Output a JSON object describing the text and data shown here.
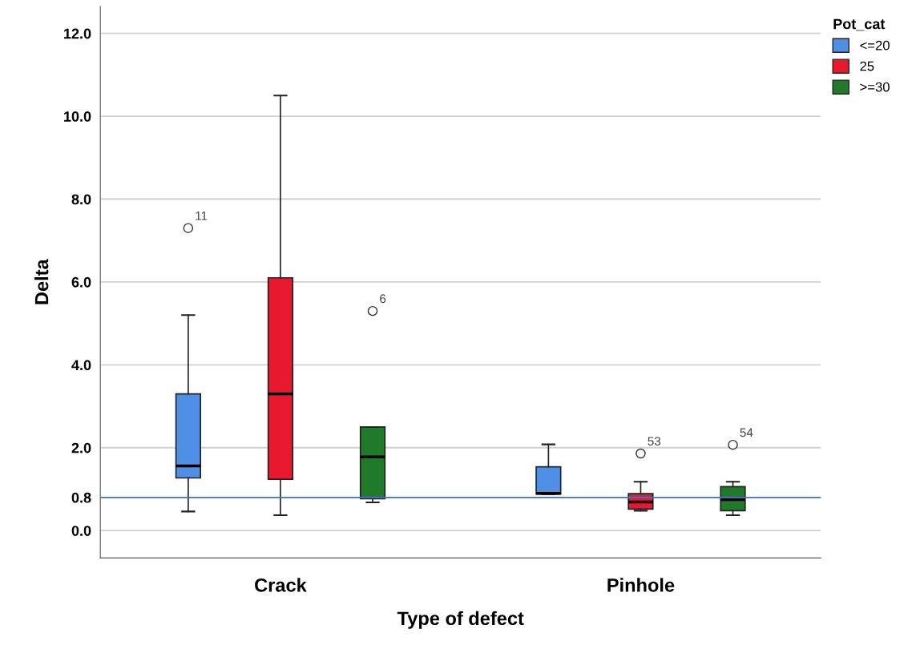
{
  "chart_data": {
    "type": "box",
    "xlabel": "Type of defect",
    "ylabel": "Delta",
    "legend_title": "Pot_cat",
    "legend": "top right",
    "categories": [
      "Crack",
      "Pinhole"
    ],
    "series": [
      {
        "name": "<=20",
        "color": "#4f8fe6",
        "boxes": [
          {
            "low": 0.46,
            "q1": 1.27,
            "median": 1.56,
            "q3": 3.3,
            "high": 5.2,
            "outliers": [
              7.3
            ]
          },
          {
            "low": 0.88,
            "q1": 0.88,
            "median": 0.9,
            "q3": 1.54,
            "high": 2.08
          }
        ]
      },
      {
        "name": "25",
        "color": "#e8192f",
        "boxes": [
          {
            "low": 0.37,
            "q1": 1.24,
            "median": 3.3,
            "q3": 6.1,
            "high": 10.5
          },
          {
            "low": 0.48,
            "q1": 0.52,
            "median": 0.69,
            "q3": 0.89,
            "high": 1.18,
            "outliers": [
              1.86
            ]
          }
        ]
      },
      {
        "name": ">=30",
        "color": "#217a2a",
        "boxes": [
          {
            "low": 0.68,
            "q1": 0.77,
            "median": 1.78,
            "q3": 2.5,
            "high": 2.5,
            "outliers": [
              5.3
            ]
          },
          {
            "low": 0.37,
            "q1": 0.48,
            "median": 0.75,
            "q3": 1.06,
            "high": 1.18,
            "outliers": [
              2.07
            ]
          }
        ]
      }
    ],
    "annotations": [
      "11",
      "6",
      "53",
      "54"
    ],
    "ref_lines": [
      {
        "axis": "y",
        "value": 0.8,
        "color": "#4472c4"
      }
    ],
    "ylim": [
      -0.66,
      12.65
    ],
    "yticks": [
      {
        "value": 0,
        "label": "0.0"
      },
      {
        "value": 0.8,
        "label": "0.8"
      },
      {
        "value": 2,
        "label": "2.0"
      },
      {
        "value": 4,
        "label": "4.0"
      },
      {
        "value": 6,
        "label": "6.0"
      },
      {
        "value": 8,
        "label": "8.0"
      },
      {
        "value": 10,
        "label": "10.0"
      },
      {
        "value": 12,
        "label": "12.0"
      }
    ],
    "grid": "y"
  }
}
